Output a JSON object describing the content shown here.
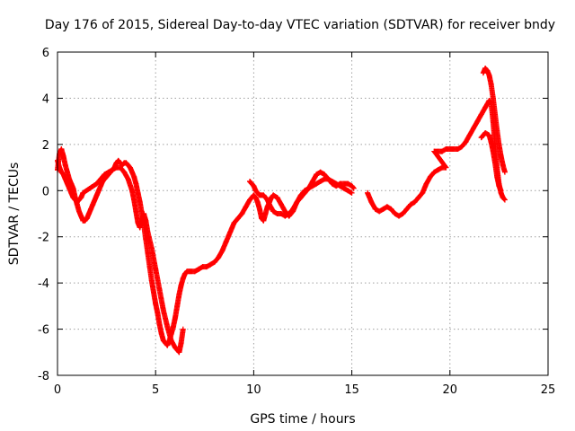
{
  "chart_data": {
    "type": "scatter",
    "title": "Day 176 of 2015, Sidereal Day-to-day VTEC variation (SDTVAR) for receiver bndy",
    "xlabel": "GPS time / hours",
    "ylabel": "SDTVAR / TECUs",
    "xlim": [
      0,
      25
    ],
    "ylim": [
      -8,
      6
    ],
    "xticks": [
      0,
      5,
      10,
      15,
      20,
      25
    ],
    "yticks": [
      -8,
      -6,
      -4,
      -2,
      0,
      2,
      4,
      6
    ],
    "grid": true,
    "legend": "none",
    "marker": "plus",
    "color": "#ff0000",
    "series": [
      {
        "points": [
          [
            0.0,
            0.9
          ],
          [
            0.1,
            1.6
          ],
          [
            0.2,
            1.8
          ],
          [
            0.3,
            1.5
          ],
          [
            0.4,
            1.1
          ],
          [
            0.5,
            0.8
          ],
          [
            0.6,
            0.5
          ],
          [
            0.7,
            0.3
          ],
          [
            0.8,
            0.1
          ],
          [
            0.9,
            -0.3
          ],
          [
            1.0,
            -0.6
          ],
          [
            1.1,
            -0.9
          ],
          [
            1.2,
            -1.1
          ],
          [
            1.3,
            -1.3
          ],
          [
            1.4,
            -1.3
          ],
          [
            1.5,
            -1.2
          ],
          [
            1.6,
            -1.0
          ],
          [
            1.7,
            -0.8
          ],
          [
            1.8,
            -0.6
          ],
          [
            1.9,
            -0.4
          ],
          [
            2.0,
            -0.2
          ],
          [
            2.1,
            0.0
          ],
          [
            2.2,
            0.2
          ],
          [
            2.3,
            0.4
          ],
          [
            2.4,
            0.5
          ],
          [
            2.5,
            0.6
          ],
          [
            2.6,
            0.7
          ],
          [
            2.7,
            0.8
          ],
          [
            2.8,
            0.9
          ],
          [
            2.9,
            1.0
          ],
          [
            3.0,
            1.2
          ],
          [
            3.1,
            1.3
          ],
          [
            3.2,
            1.2
          ],
          [
            3.3,
            1.1
          ],
          [
            3.4,
            1.2
          ],
          [
            3.5,
            1.2
          ],
          [
            3.6,
            1.1
          ],
          [
            3.7,
            1.0
          ],
          [
            3.8,
            0.8
          ],
          [
            3.9,
            0.6
          ],
          [
            4.0,
            0.3
          ],
          [
            4.1,
            -0.1
          ],
          [
            4.2,
            -0.5
          ],
          [
            4.3,
            -1.0
          ],
          [
            4.4,
            -1.5
          ],
          [
            4.5,
            -2.1
          ],
          [
            4.6,
            -2.7
          ],
          [
            4.7,
            -3.3
          ],
          [
            4.8,
            -3.9
          ],
          [
            4.9,
            -4.4
          ],
          [
            5.0,
            -4.9
          ],
          [
            5.1,
            -5.3
          ],
          [
            5.2,
            -5.8
          ],
          [
            5.3,
            -6.2
          ],
          [
            5.4,
            -6.5
          ],
          [
            5.5,
            -6.6
          ],
          [
            5.6,
            -6.7
          ],
          [
            5.7,
            -6.5
          ],
          [
            5.8,
            -6.2
          ],
          [
            5.9,
            -5.9
          ],
          [
            6.0,
            -5.5
          ],
          [
            6.1,
            -5.0
          ],
          [
            6.2,
            -4.5
          ],
          [
            6.3,
            -4.1
          ],
          [
            6.4,
            -3.8
          ],
          [
            6.5,
            -3.6
          ],
          [
            6.6,
            -3.5
          ],
          [
            6.7,
            -3.5
          ],
          [
            6.8,
            -3.5
          ],
          [
            7.0,
            -3.5
          ],
          [
            7.2,
            -3.4
          ],
          [
            7.4,
            -3.3
          ],
          [
            7.6,
            -3.3
          ],
          [
            7.8,
            -3.2
          ],
          [
            8.0,
            -3.1
          ],
          [
            8.2,
            -2.9
          ],
          [
            8.4,
            -2.6
          ],
          [
            8.6,
            -2.2
          ],
          [
            8.8,
            -1.8
          ],
          [
            9.0,
            -1.4
          ],
          [
            9.2,
            -1.2
          ],
          [
            9.4,
            -1.0
          ],
          [
            9.6,
            -0.7
          ],
          [
            9.8,
            -0.4
          ],
          [
            10.0,
            -0.2
          ],
          [
            10.1,
            -0.3
          ],
          [
            10.2,
            -0.5
          ],
          [
            10.3,
            -0.8
          ],
          [
            10.4,
            -1.2
          ],
          [
            10.5,
            -1.3
          ],
          [
            10.6,
            -1.0
          ],
          [
            10.7,
            -0.7
          ],
          [
            10.8,
            -0.5
          ],
          [
            10.9,
            -0.3
          ],
          [
            11.0,
            -0.2
          ],
          [
            11.2,
            -0.3
          ],
          [
            11.4,
            -0.6
          ],
          [
            11.6,
            -0.9
          ],
          [
            11.8,
            -1.1
          ],
          [
            12.0,
            -0.9
          ],
          [
            12.2,
            -0.5
          ],
          [
            12.4,
            -0.2
          ],
          [
            12.6,
            0.0
          ],
          [
            12.8,
            0.1
          ],
          [
            13.0,
            0.4
          ],
          [
            13.2,
            0.7
          ],
          [
            13.4,
            0.8
          ],
          [
            13.6,
            0.7
          ],
          [
            13.8,
            0.5
          ],
          [
            14.0,
            0.3
          ],
          [
            14.2,
            0.2
          ],
          [
            14.4,
            0.3
          ],
          [
            14.6,
            0.3
          ],
          [
            14.8,
            0.3
          ],
          [
            15.0,
            0.2
          ],
          [
            15.1,
            0.1
          ]
        ]
      },
      {
        "points": [
          [
            0.0,
            1.3
          ],
          [
            0.1,
            1.0
          ],
          [
            0.2,
            0.8
          ],
          [
            0.3,
            0.7
          ],
          [
            0.4,
            0.5
          ],
          [
            0.5,
            0.3
          ],
          [
            0.6,
            0.1
          ],
          [
            0.7,
            -0.1
          ],
          [
            0.8,
            -0.3
          ],
          [
            0.9,
            -0.4
          ],
          [
            1.0,
            -0.5
          ],
          [
            1.1,
            -0.4
          ],
          [
            1.2,
            -0.3
          ],
          [
            1.3,
            -0.1
          ],
          [
            2.0,
            0.3
          ],
          [
            2.2,
            0.5
          ],
          [
            2.4,
            0.7
          ],
          [
            2.6,
            0.8
          ],
          [
            2.8,
            0.9
          ],
          [
            3.0,
            1.0
          ],
          [
            3.2,
            1.0
          ],
          [
            3.4,
            0.8
          ],
          [
            3.6,
            0.5
          ],
          [
            3.8,
            0.0
          ],
          [
            3.9,
            -0.4
          ],
          [
            4.0,
            -0.9
          ],
          [
            4.1,
            -1.4
          ],
          [
            4.2,
            -1.6
          ],
          [
            4.3,
            -1.3
          ],
          [
            4.4,
            -1.0
          ],
          [
            4.5,
            -1.3
          ],
          [
            4.6,
            -1.8
          ],
          [
            4.8,
            -2.5
          ],
          [
            5.0,
            -3.4
          ],
          [
            5.2,
            -4.3
          ],
          [
            5.4,
            -5.2
          ],
          [
            5.6,
            -5.9
          ],
          [
            5.8,
            -6.5
          ],
          [
            6.0,
            -6.8
          ],
          [
            6.2,
            -7.0
          ],
          [
            6.3,
            -6.6
          ],
          [
            6.4,
            -6.0
          ],
          [
            9.8,
            0.4
          ],
          [
            9.9,
            0.3
          ],
          [
            10.0,
            0.2
          ],
          [
            10.1,
            0.0
          ],
          [
            10.2,
            -0.1
          ],
          [
            10.3,
            -0.2
          ],
          [
            10.4,
            -0.2
          ],
          [
            10.5,
            -0.2
          ],
          [
            10.6,
            -0.3
          ],
          [
            10.7,
            -0.4
          ],
          [
            10.8,
            -0.6
          ],
          [
            11.0,
            -0.9
          ],
          [
            11.2,
            -1.0
          ],
          [
            11.4,
            -1.0
          ],
          [
            11.6,
            -1.1
          ],
          [
            11.8,
            -1.0
          ],
          [
            12.0,
            -0.8
          ],
          [
            12.2,
            -0.5
          ],
          [
            12.4,
            -0.3
          ],
          [
            12.6,
            -0.1
          ],
          [
            12.8,
            0.1
          ],
          [
            13.0,
            0.2
          ],
          [
            13.2,
            0.3
          ],
          [
            13.4,
            0.4
          ],
          [
            13.6,
            0.5
          ],
          [
            13.8,
            0.5
          ],
          [
            14.0,
            0.4
          ],
          [
            14.2,
            0.3
          ],
          [
            14.4,
            0.2
          ],
          [
            14.6,
            0.1
          ],
          [
            14.8,
            0.0
          ],
          [
            15.0,
            -0.1
          ]
        ]
      },
      {
        "points": [
          [
            15.8,
            -0.1
          ],
          [
            16.0,
            -0.5
          ],
          [
            16.2,
            -0.8
          ],
          [
            16.4,
            -0.9
          ],
          [
            16.6,
            -0.8
          ],
          [
            16.8,
            -0.7
          ],
          [
            17.0,
            -0.8
          ],
          [
            17.2,
            -1.0
          ],
          [
            17.4,
            -1.1
          ],
          [
            17.6,
            -1.0
          ],
          [
            17.8,
            -0.8
          ],
          [
            18.0,
            -0.6
          ],
          [
            18.2,
            -0.5
          ],
          [
            18.4,
            -0.3
          ],
          [
            18.6,
            -0.1
          ],
          [
            18.8,
            0.3
          ],
          [
            19.0,
            0.6
          ],
          [
            19.2,
            0.8
          ],
          [
            19.4,
            0.9
          ],
          [
            19.6,
            1.0
          ],
          [
            19.8,
            1.0
          ],
          [
            19.2,
            1.7
          ],
          [
            19.4,
            1.7
          ],
          [
            19.6,
            1.7
          ],
          [
            19.8,
            1.8
          ],
          [
            20.0,
            1.8
          ],
          [
            20.2,
            1.8
          ],
          [
            20.4,
            1.8
          ],
          [
            20.6,
            1.9
          ],
          [
            20.8,
            2.1
          ],
          [
            21.0,
            2.4
          ],
          [
            21.2,
            2.7
          ],
          [
            21.4,
            3.0
          ],
          [
            21.6,
            3.3
          ],
          [
            21.8,
            3.6
          ],
          [
            22.0,
            3.9
          ],
          [
            22.1,
            3.8
          ],
          [
            22.2,
            3.0
          ],
          [
            22.3,
            2.0
          ],
          [
            22.4,
            1.0
          ],
          [
            22.5,
            0.3
          ],
          [
            22.6,
            -0.1
          ],
          [
            22.7,
            -0.3
          ],
          [
            22.8,
            -0.4
          ],
          [
            21.6,
            2.3
          ],
          [
            21.8,
            2.5
          ],
          [
            22.0,
            2.4
          ],
          [
            22.1,
            2.1
          ],
          [
            22.2,
            1.7
          ],
          [
            22.3,
            1.2
          ],
          [
            22.4,
            0.6
          ],
          [
            22.5,
            0.2
          ],
          [
            22.6,
            0.0
          ],
          [
            21.7,
            5.1
          ],
          [
            21.8,
            5.3
          ],
          [
            21.9,
            5.2
          ],
          [
            22.0,
            5.0
          ],
          [
            22.1,
            4.6
          ],
          [
            22.2,
            4.0
          ],
          [
            22.3,
            3.3
          ],
          [
            22.4,
            2.6
          ],
          [
            22.5,
            2.0
          ],
          [
            22.6,
            1.5
          ],
          [
            22.7,
            1.1
          ],
          [
            22.8,
            0.8
          ]
        ]
      }
    ]
  }
}
